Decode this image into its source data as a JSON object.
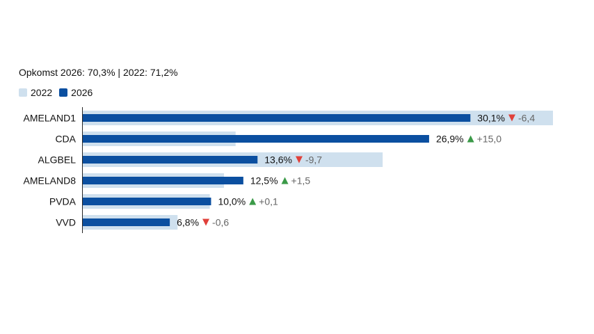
{
  "header": {
    "turnout": "Opkomst 2026: 70,3% | 2022: 71,2%"
  },
  "legend": [
    {
      "label": "2022",
      "color": "#cfe0ee"
    },
    {
      "label": "2026",
      "color": "#0b4fa0"
    }
  ],
  "colors": {
    "bar_2022": "#cfe0ee",
    "bar_2026": "#0b4fa0",
    "up": "#3b9a48",
    "down": "#e0403a",
    "change_text": "#666666",
    "axis": "#222222"
  },
  "chart_data": {
    "type": "bar",
    "orientation": "horizontal",
    "categories": [
      "AMELAND1",
      "CDA",
      "ALGBEL",
      "AMELAND8",
      "PVDA",
      "VVD"
    ],
    "series": [
      {
        "name": "2022",
        "values": [
          36.5,
          11.9,
          23.3,
          11.0,
          9.9,
          7.4
        ]
      },
      {
        "name": "2026",
        "values": [
          30.1,
          26.9,
          13.6,
          12.5,
          10.0,
          6.8
        ]
      }
    ],
    "labels": [
      "30,1%",
      "26,9%",
      "13,6%",
      "12,5%",
      "10,0%",
      "6,8%"
    ],
    "changes": [
      {
        "direction": "down",
        "text": "-6,4"
      },
      {
        "direction": "up",
        "text": "+15,0"
      },
      {
        "direction": "down",
        "text": "-9,7"
      },
      {
        "direction": "up",
        "text": "+1,5"
      },
      {
        "direction": "up",
        "text": "+0,1"
      },
      {
        "direction": "down",
        "text": "-0,6"
      }
    ],
    "xlim": [
      0,
      36.5
    ]
  }
}
